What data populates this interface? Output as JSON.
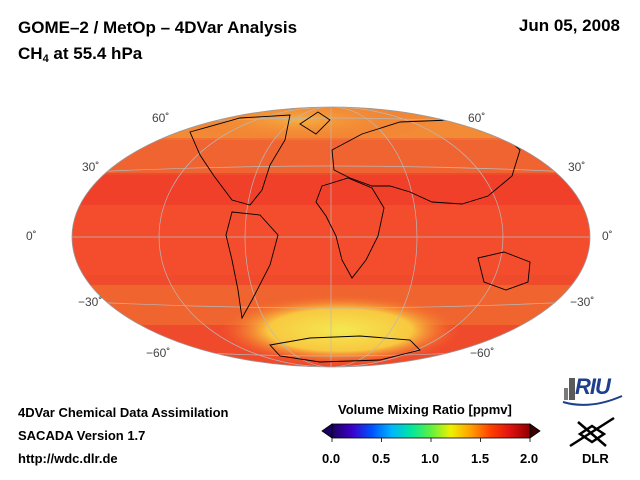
{
  "header": {
    "title": "GOME–2 / MetOp – 4DVar Analysis",
    "species": "CH",
    "species_sub": "4",
    "level": " at 55.4 hPa",
    "date": "Jun 05, 2008"
  },
  "map": {
    "lat_labels_left": [
      "60˚",
      "30˚",
      "0˚",
      "−30˚",
      "−60˚"
    ],
    "lat_labels_right": [
      "60˚",
      "30˚",
      "0˚",
      "−30˚",
      "−60˚"
    ]
  },
  "colorbar": {
    "title": "Volume Mixing Ratio [ppmv]",
    "ticks": [
      "0.0",
      "0.5",
      "1.0",
      "1.5",
      "2.0"
    ],
    "colors": [
      "#1a0060",
      "#3b00c8",
      "#0050ff",
      "#00b4ff",
      "#00e6a0",
      "#60f040",
      "#f0f000",
      "#ffa000",
      "#ff4000",
      "#e01010",
      "#900000"
    ]
  },
  "footer": {
    "line1": "4DVar Chemical Data Assimilation",
    "line2": "SACADA Version 1.7",
    "line3": "http://wdc.dlr.de"
  },
  "logos": {
    "riu": "RIU",
    "dlr": "DLR"
  }
}
